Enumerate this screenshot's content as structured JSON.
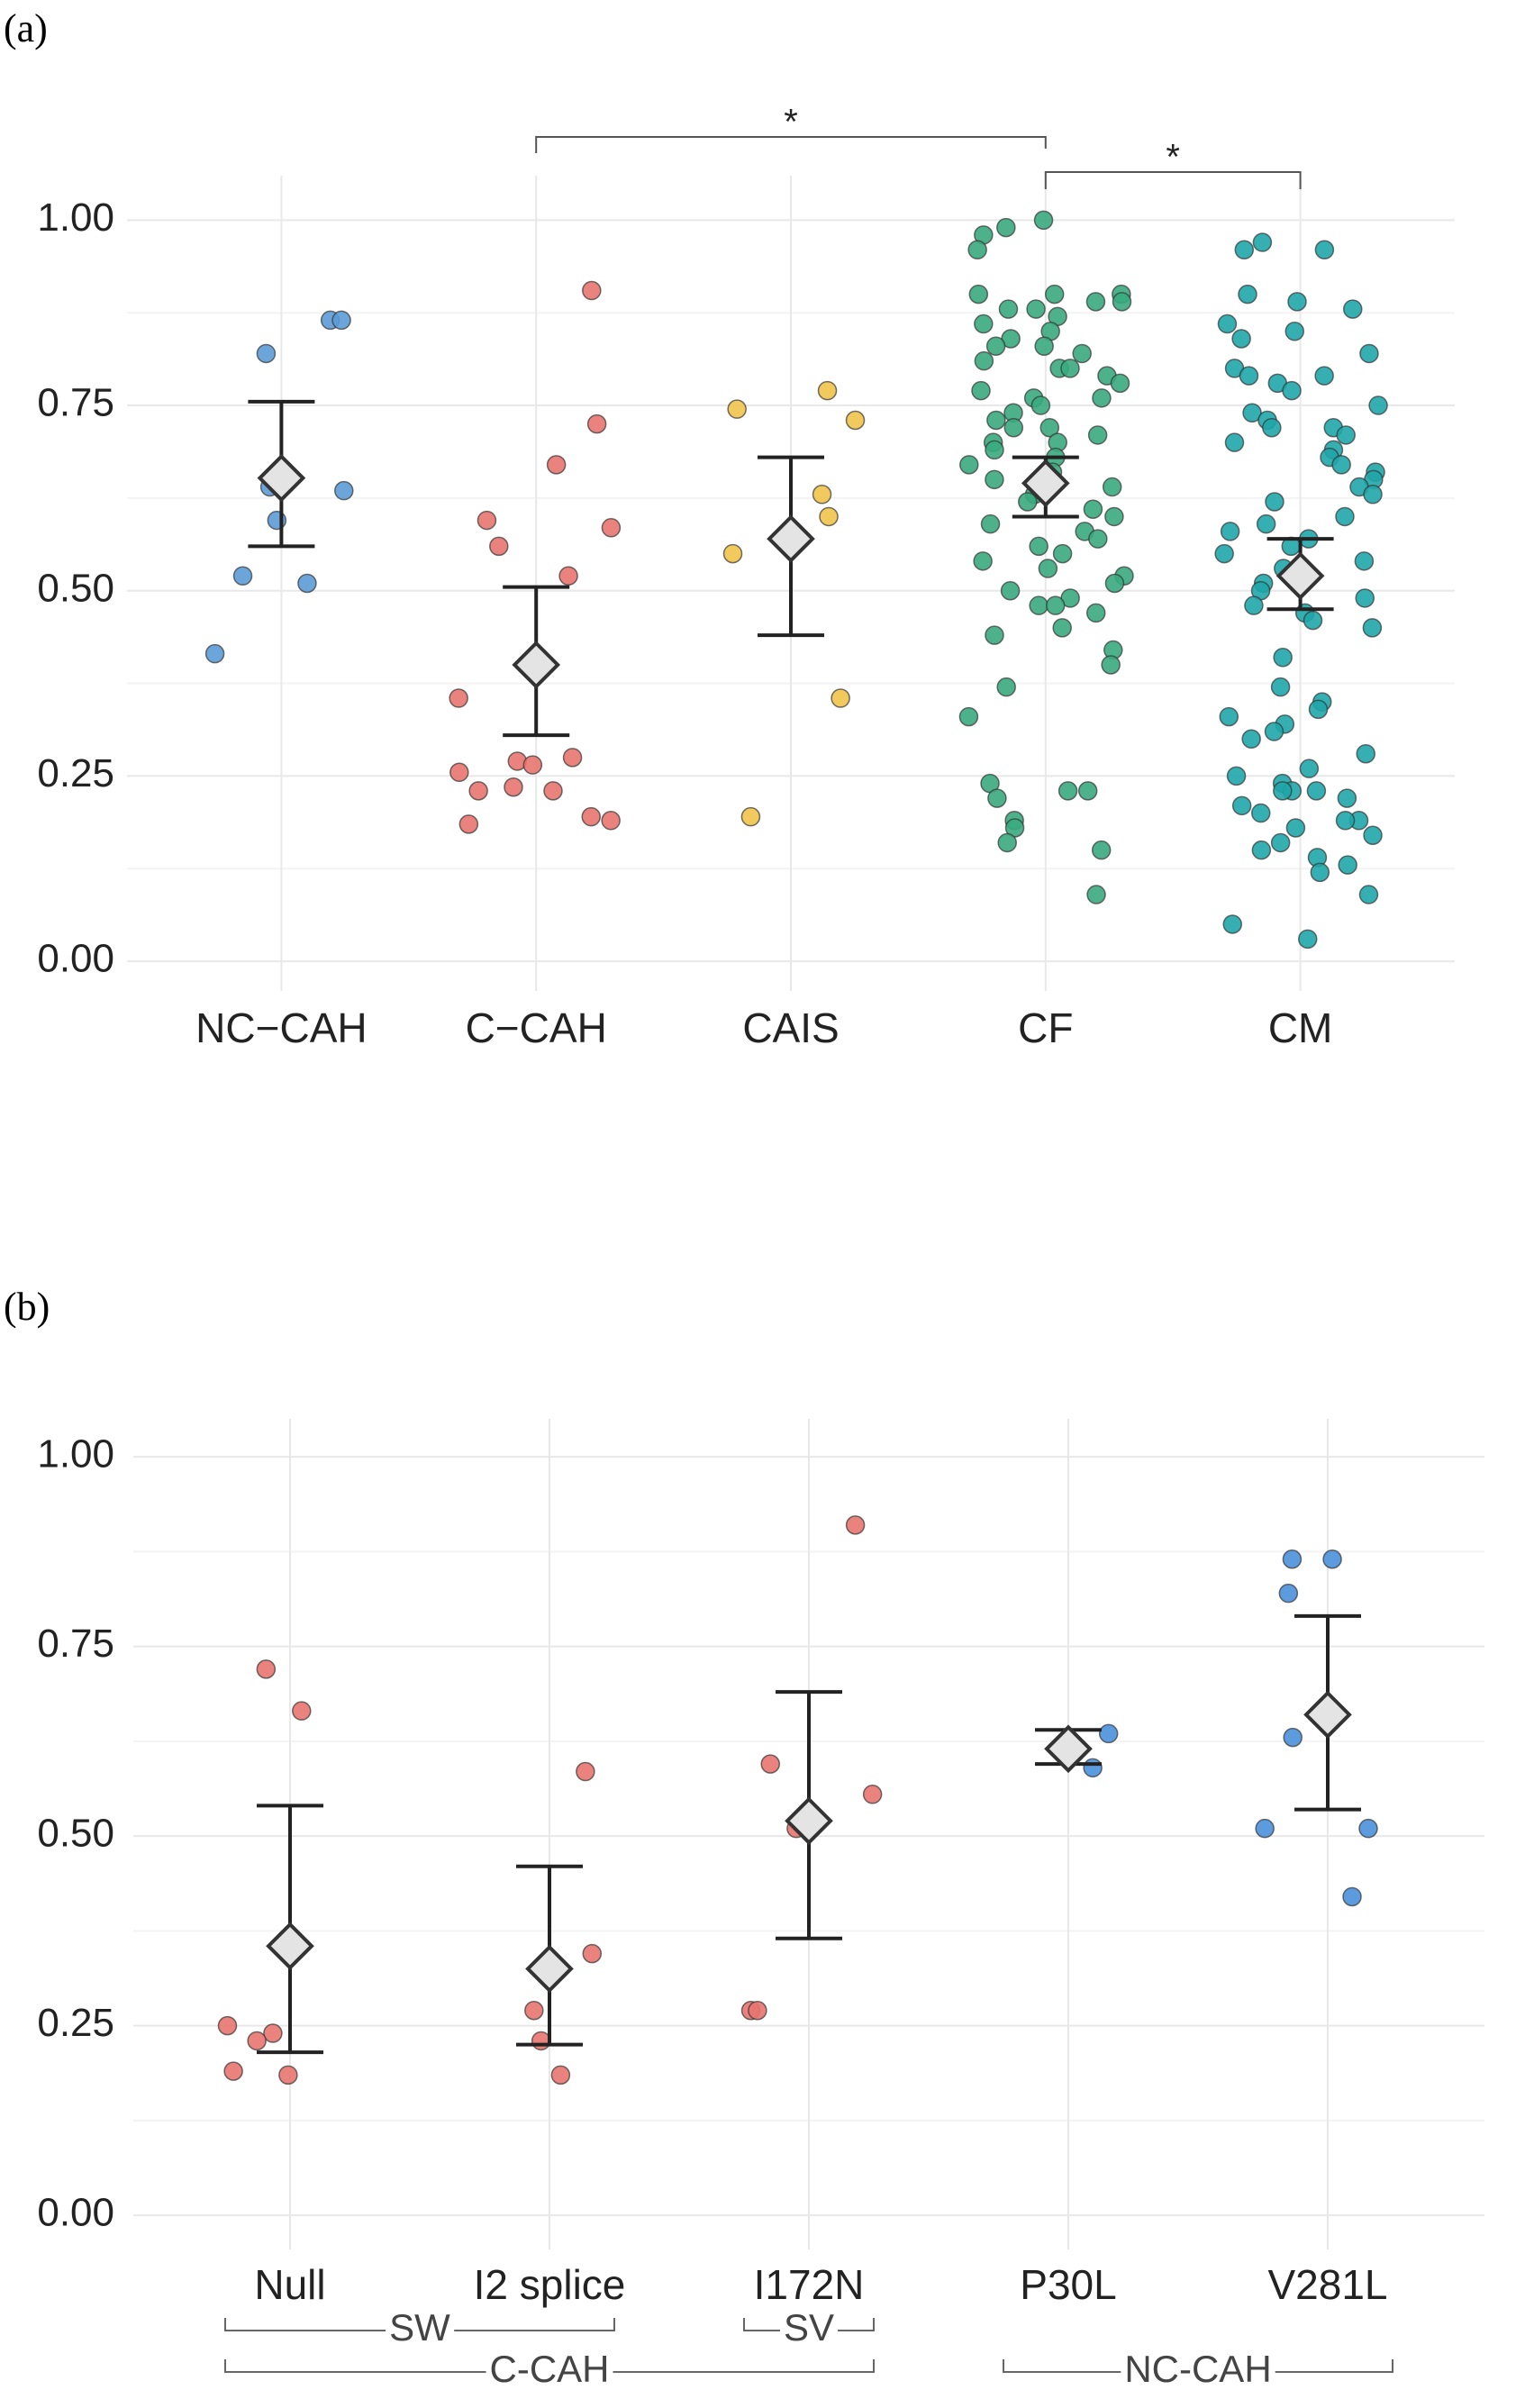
{
  "chart_data": [
    {
      "type": "strip",
      "panel_label": "(a)",
      "categories": [
        "NC−CAH",
        "C−CAH",
        "CAIS",
        "CF",
        "CM"
      ],
      "colors": [
        "#5b9bd5",
        "#e8746f",
        "#f0c34a",
        "#3aaa80",
        "#1fa6a8"
      ],
      "points": [
        [
          0.865,
          0.865,
          0.82,
          0.64,
          0.635,
          0.595,
          0.52,
          0.51,
          0.415
        ],
        [
          0.905,
          0.725,
          0.67,
          0.595,
          0.585,
          0.56,
          0.52,
          0.355,
          0.275,
          0.27,
          0.265,
          0.255,
          0.235,
          0.23,
          0.23,
          0.195,
          0.19,
          0.185
        ],
        [
          0.77,
          0.745,
          0.73,
          0.63,
          0.6,
          0.55,
          0.355,
          0.195
        ],
        [
          1.0,
          0.99,
          0.98,
          0.96,
          0.9,
          0.9,
          0.9,
          0.89,
          0.89,
          0.88,
          0.88,
          0.87,
          0.86,
          0.85,
          0.84,
          0.83,
          0.83,
          0.82,
          0.81,
          0.8,
          0.8,
          0.79,
          0.78,
          0.77,
          0.76,
          0.76,
          0.75,
          0.74,
          0.73,
          0.72,
          0.72,
          0.71,
          0.7,
          0.7,
          0.69,
          0.68,
          0.67,
          0.66,
          0.65,
          0.64,
          0.63,
          0.62,
          0.61,
          0.6,
          0.59,
          0.58,
          0.57,
          0.56,
          0.55,
          0.54,
          0.53,
          0.52,
          0.51,
          0.5,
          0.49,
          0.48,
          0.48,
          0.47,
          0.45,
          0.44,
          0.42,
          0.4,
          0.37,
          0.33,
          0.24,
          0.23,
          0.23,
          0.22,
          0.19,
          0.18,
          0.16,
          0.15,
          0.09
        ],
        [
          0.97,
          0.96,
          0.96,
          0.9,
          0.89,
          0.88,
          0.86,
          0.85,
          0.84,
          0.82,
          0.8,
          0.79,
          0.79,
          0.78,
          0.77,
          0.75,
          0.74,
          0.73,
          0.72,
          0.72,
          0.71,
          0.7,
          0.69,
          0.68,
          0.67,
          0.66,
          0.65,
          0.64,
          0.63,
          0.62,
          0.6,
          0.59,
          0.58,
          0.57,
          0.56,
          0.55,
          0.54,
          0.53,
          0.52,
          0.51,
          0.5,
          0.49,
          0.48,
          0.47,
          0.46,
          0.45,
          0.41,
          0.37,
          0.35,
          0.34,
          0.33,
          0.32,
          0.31,
          0.3,
          0.28,
          0.26,
          0.25,
          0.24,
          0.23,
          0.23,
          0.23,
          0.22,
          0.21,
          0.2,
          0.19,
          0.19,
          0.18,
          0.17,
          0.16,
          0.15,
          0.14,
          0.13,
          0.12,
          0.09,
          0.05,
          0.03
        ]
      ],
      "means": [
        0.652,
        0.4,
        0.57,
        0.645,
        0.52
      ],
      "error_low": [
        0.56,
        0.305,
        0.44,
        0.6,
        0.475
      ],
      "error_high": [
        0.755,
        0.505,
        0.68,
        0.68,
        0.57
      ],
      "ylim": [
        -0.04,
        1.06
      ],
      "yticks": [
        {
          "value": 0,
          "label": "0.00"
        },
        {
          "value": 0.25,
          "label": "0.25"
        },
        {
          "value": 0.5,
          "label": "0.50"
        },
        {
          "value": 0.75,
          "label": "0.75"
        },
        {
          "value": 1,
          "label": "1.00"
        }
      ],
      "grid": true,
      "minor_grid": true,
      "significance": [
        {
          "text": "*",
          "from": 1,
          "to": 3
        },
        {
          "text": "*",
          "from": 3,
          "to": 4
        }
      ]
    },
    {
      "type": "strip",
      "panel_label": "(b)",
      "categories": [
        "Null",
        "I2 splice",
        "I172N",
        "P30L",
        "V281L"
      ],
      "colors": [
        "#e8746f",
        "#e8746f",
        "#e8746f",
        "#4a90d9",
        "#4a90d9"
      ],
      "points": [
        [
          0.72,
          0.665,
          0.25,
          0.24,
          0.23,
          0.19,
          0.185
        ],
        [
          0.585,
          0.345,
          0.27,
          0.23,
          0.185
        ],
        [
          0.91,
          0.595,
          0.555,
          0.51,
          0.27,
          0.27
        ],
        [
          0.635,
          0.59
        ],
        [
          0.865,
          0.865,
          0.82,
          0.63,
          0.51,
          0.51,
          0.42
        ]
      ],
      "means": [
        0.355,
        0.325,
        0.52,
        0.615,
        0.66
      ],
      "error_low": [
        0.215,
        0.225,
        0.365,
        0.595,
        0.535
      ],
      "error_high": [
        0.54,
        0.46,
        0.69,
        0.64,
        0.79
      ],
      "ylim": [
        -0.045,
        1.05
      ],
      "yticks": [
        {
          "value": 0,
          "label": "0.00"
        },
        {
          "value": 0.25,
          "label": "0.25"
        },
        {
          "value": 0.5,
          "label": "0.50"
        },
        {
          "value": 0.75,
          "label": "0.75"
        },
        {
          "value": 1,
          "label": "1.00"
        }
      ],
      "grid": true,
      "minor_grid": true,
      "subgroups": [
        {
          "label": "SW",
          "from": 0,
          "to": 1
        },
        {
          "label": "SV",
          "from": 2,
          "to": 2
        }
      ],
      "supergroups": [
        {
          "label": "C-CAH",
          "from": 0,
          "to": 2
        },
        {
          "label": "NC-CAH",
          "from": 3,
          "to": 4
        }
      ]
    }
  ]
}
